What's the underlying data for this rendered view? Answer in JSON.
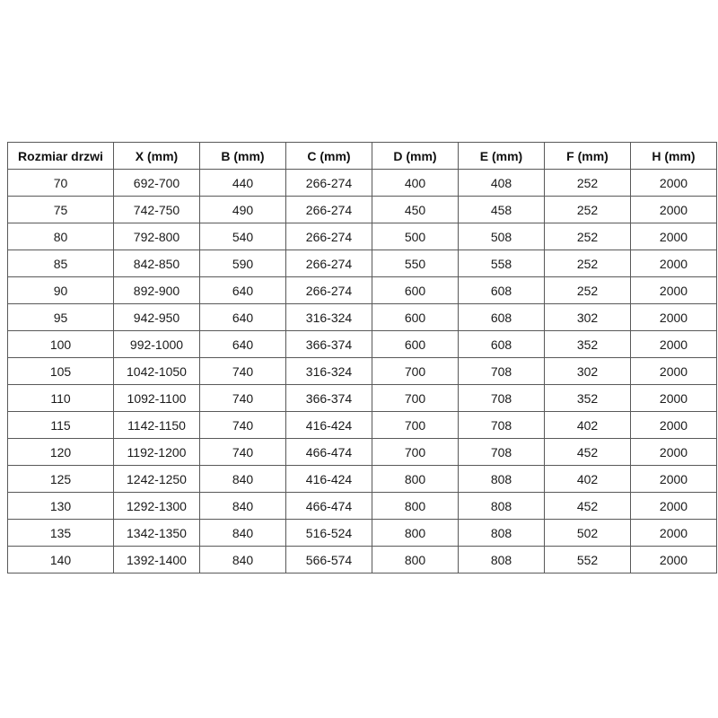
{
  "table": {
    "columns": [
      "Rozmiar drzwi",
      "X (mm)",
      "B (mm)",
      "C (mm)",
      "D (mm)",
      "E (mm)",
      "F (mm)",
      "H (mm)"
    ],
    "rows": [
      [
        "70",
        "692-700",
        "440",
        "266-274",
        "400",
        "408",
        "252",
        "2000"
      ],
      [
        "75",
        "742-750",
        "490",
        "266-274",
        "450",
        "458",
        "252",
        "2000"
      ],
      [
        "80",
        "792-800",
        "540",
        "266-274",
        "500",
        "508",
        "252",
        "2000"
      ],
      [
        "85",
        "842-850",
        "590",
        "266-274",
        "550",
        "558",
        "252",
        "2000"
      ],
      [
        "90",
        "892-900",
        "640",
        "266-274",
        "600",
        "608",
        "252",
        "2000"
      ],
      [
        "95",
        "942-950",
        "640",
        "316-324",
        "600",
        "608",
        "302",
        "2000"
      ],
      [
        "100",
        "992-1000",
        "640",
        "366-374",
        "600",
        "608",
        "352",
        "2000"
      ],
      [
        "105",
        "1042-1050",
        "740",
        "316-324",
        "700",
        "708",
        "302",
        "2000"
      ],
      [
        "110",
        "1092-1100",
        "740",
        "366-374",
        "700",
        "708",
        "352",
        "2000"
      ],
      [
        "115",
        "1142-1150",
        "740",
        "416-424",
        "700",
        "708",
        "402",
        "2000"
      ],
      [
        "120",
        "1192-1200",
        "740",
        "466-474",
        "700",
        "708",
        "452",
        "2000"
      ],
      [
        "125",
        "1242-1250",
        "840",
        "416-424",
        "800",
        "808",
        "402",
        "2000"
      ],
      [
        "130",
        "1292-1300",
        "840",
        "466-474",
        "800",
        "808",
        "452",
        "2000"
      ],
      [
        "135",
        "1342-1350",
        "840",
        "516-524",
        "800",
        "808",
        "502",
        "2000"
      ],
      [
        "140",
        "1392-1400",
        "840",
        "566-574",
        "800",
        "808",
        "552",
        "2000"
      ]
    ],
    "colors": {
      "border": "#595959",
      "text": "#1a1a1a",
      "background": "#ffffff"
    }
  },
  "chart_data": {
    "type": "table",
    "title": "",
    "columns": [
      "Rozmiar drzwi",
      "X (mm)",
      "B (mm)",
      "C (mm)",
      "D (mm)",
      "E (mm)",
      "F (mm)",
      "H (mm)"
    ],
    "rows": [
      [
        "70",
        "692-700",
        "440",
        "266-274",
        "400",
        "408",
        "252",
        "2000"
      ],
      [
        "75",
        "742-750",
        "490",
        "266-274",
        "450",
        "458",
        "252",
        "2000"
      ],
      [
        "80",
        "792-800",
        "540",
        "266-274",
        "500",
        "508",
        "252",
        "2000"
      ],
      [
        "85",
        "842-850",
        "590",
        "266-274",
        "550",
        "558",
        "252",
        "2000"
      ],
      [
        "90",
        "892-900",
        "640",
        "266-274",
        "600",
        "608",
        "252",
        "2000"
      ],
      [
        "95",
        "942-950",
        "640",
        "316-324",
        "600",
        "608",
        "302",
        "2000"
      ],
      [
        "100",
        "992-1000",
        "640",
        "366-374",
        "600",
        "608",
        "352",
        "2000"
      ],
      [
        "105",
        "1042-1050",
        "740",
        "316-324",
        "700",
        "708",
        "302",
        "2000"
      ],
      [
        "110",
        "1092-1100",
        "740",
        "366-374",
        "700",
        "708",
        "352",
        "2000"
      ],
      [
        "115",
        "1142-1150",
        "740",
        "416-424",
        "700",
        "708",
        "402",
        "2000"
      ],
      [
        "120",
        "1192-1200",
        "740",
        "466-474",
        "700",
        "708",
        "452",
        "2000"
      ],
      [
        "125",
        "1242-1250",
        "840",
        "416-424",
        "800",
        "808",
        "402",
        "2000"
      ],
      [
        "130",
        "1292-1300",
        "840",
        "466-474",
        "800",
        "808",
        "452",
        "2000"
      ],
      [
        "135",
        "1342-1350",
        "840",
        "516-524",
        "800",
        "808",
        "502",
        "2000"
      ],
      [
        "140",
        "1392-1400",
        "840",
        "566-574",
        "800",
        "808",
        "552",
        "2000"
      ]
    ]
  }
}
